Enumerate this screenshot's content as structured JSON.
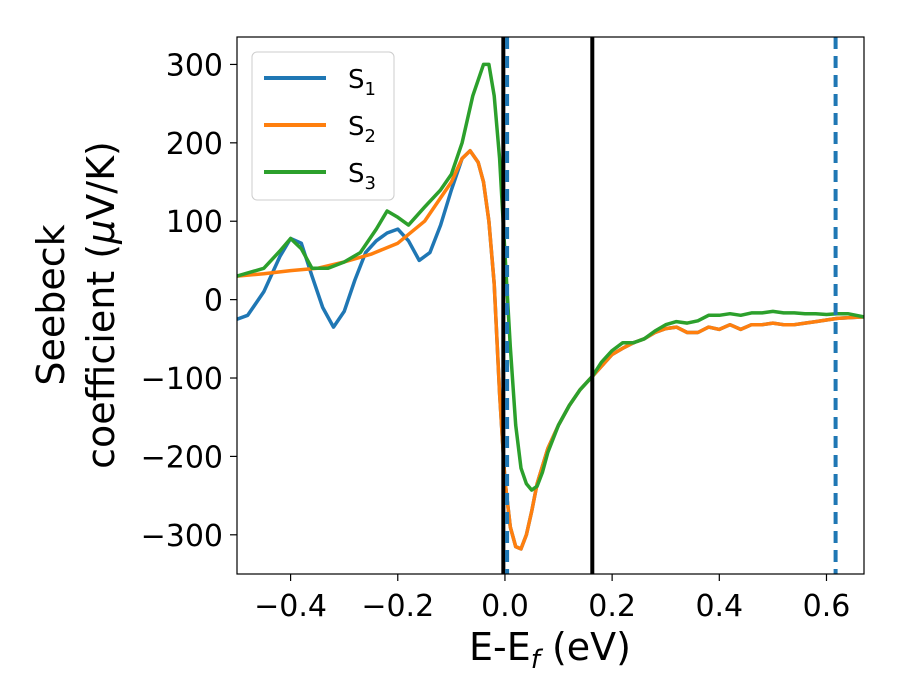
{
  "chart_data": {
    "type": "line",
    "xlabel": {
      "main": "E-E",
      "sub": "f",
      "unit": " (eV)"
    },
    "ylabel": {
      "line1": "Seebeck",
      "line2": "coefficient  (",
      "mu": "μ",
      "unit": "V/K)"
    },
    "xlim": [
      -0.5,
      0.67
    ],
    "ylim": [
      -350,
      335
    ],
    "xticks": [
      -0.4,
      -0.2,
      0.0,
      0.2,
      0.4,
      0.6
    ],
    "xtick_labels": [
      "−0.4",
      "−0.2",
      "0.0",
      "0.2",
      "0.4",
      "0.6"
    ],
    "yticks": [
      300,
      200,
      100,
      0,
      -100,
      -200,
      -300
    ],
    "ytick_labels": [
      "300",
      "200",
      "100",
      "0",
      "−100",
      "−200",
      "−300"
    ],
    "grid": false,
    "legend_position": "top-left",
    "vertical_lines": [
      {
        "x": -0.003,
        "style": "solid",
        "color": "#000000"
      },
      {
        "x": 0.163,
        "style": "solid",
        "color": "#000000"
      },
      {
        "x": 0.004,
        "style": "dashed",
        "color": "#1f77b4"
      },
      {
        "x": 0.617,
        "style": "dashed",
        "color": "#1f77b4"
      }
    ],
    "series": [
      {
        "name_main": "S",
        "name_sub": "1",
        "color": "#1f77b4",
        "x": [
          -0.5,
          -0.48,
          -0.45,
          -0.42,
          -0.4,
          -0.38,
          -0.36,
          -0.34,
          -0.32,
          -0.3,
          -0.28,
          -0.26,
          -0.24,
          -0.22,
          -0.2,
          -0.18,
          -0.16,
          -0.14,
          -0.12,
          -0.1,
          -0.08,
          -0.065,
          -0.05,
          -0.04,
          -0.03,
          -0.02,
          -0.01,
          0.0,
          0.01,
          0.02,
          0.03,
          0.04,
          0.05,
          0.06,
          0.08,
          0.1,
          0.12,
          0.14,
          0.163,
          0.18,
          0.2,
          0.22,
          0.24,
          0.26,
          0.28,
          0.3,
          0.32,
          0.34,
          0.36,
          0.38,
          0.4,
          0.42,
          0.44,
          0.46,
          0.48,
          0.5,
          0.52,
          0.54,
          0.56,
          0.58,
          0.6,
          0.62,
          0.64,
          0.67
        ],
        "y": [
          -25,
          -20,
          10,
          55,
          78,
          72,
          30,
          -10,
          -35,
          -15,
          25,
          60,
          75,
          85,
          90,
          75,
          50,
          60,
          95,
          140,
          180,
          190,
          175,
          150,
          100,
          20,
          -120,
          -230,
          -290,
          -315,
          -318,
          -300,
          -270,
          -235,
          -190,
          -160,
          -135,
          -115,
          -98,
          -85,
          -70,
          -62,
          -55,
          -50,
          -42,
          -37,
          -35,
          -42,
          -42,
          -35,
          -38,
          -32,
          -38,
          -32,
          -32,
          -30,
          -32,
          -32,
          -30,
          -28,
          -26,
          -24,
          -23,
          -22
        ]
      },
      {
        "name_main": "S",
        "name_sub": "2",
        "color": "#ff7f0e",
        "x": [
          -0.5,
          -0.45,
          -0.4,
          -0.35,
          -0.3,
          -0.25,
          -0.2,
          -0.15,
          -0.1,
          -0.08,
          -0.065,
          -0.05,
          -0.04,
          -0.03,
          -0.02,
          -0.01,
          0.0,
          0.01,
          0.02,
          0.03,
          0.04,
          0.05,
          0.06,
          0.08,
          0.1,
          0.12,
          0.14,
          0.163,
          0.18,
          0.2,
          0.22,
          0.24,
          0.26,
          0.28,
          0.3,
          0.32,
          0.34,
          0.36,
          0.38,
          0.4,
          0.42,
          0.44,
          0.46,
          0.48,
          0.5,
          0.52,
          0.54,
          0.56,
          0.58,
          0.6,
          0.62,
          0.64,
          0.67
        ],
        "y": [
          30,
          33,
          37,
          40,
          48,
          58,
          72,
          100,
          150,
          180,
          190,
          175,
          150,
          100,
          20,
          -120,
          -230,
          -290,
          -315,
          -318,
          -300,
          -270,
          -235,
          -190,
          -160,
          -135,
          -115,
          -98,
          -85,
          -70,
          -62,
          -55,
          -50,
          -42,
          -37,
          -35,
          -42,
          -42,
          -35,
          -38,
          -32,
          -38,
          -32,
          -32,
          -30,
          -32,
          -32,
          -30,
          -28,
          -26,
          -24,
          -23,
          -22
        ]
      },
      {
        "name_main": "S",
        "name_sub": "3",
        "color": "#2ca02c",
        "x": [
          -0.5,
          -0.45,
          -0.42,
          -0.4,
          -0.38,
          -0.36,
          -0.33,
          -0.3,
          -0.27,
          -0.24,
          -0.22,
          -0.2,
          -0.18,
          -0.15,
          -0.12,
          -0.1,
          -0.08,
          -0.06,
          -0.04,
          -0.03,
          -0.02,
          -0.01,
          0.0,
          0.01,
          0.02,
          0.03,
          0.04,
          0.05,
          0.06,
          0.07,
          0.08,
          0.1,
          0.12,
          0.14,
          0.163,
          0.18,
          0.2,
          0.22,
          0.24,
          0.26,
          0.28,
          0.3,
          0.32,
          0.34,
          0.36,
          0.38,
          0.4,
          0.42,
          0.44,
          0.46,
          0.48,
          0.5,
          0.52,
          0.54,
          0.56,
          0.58,
          0.6,
          0.62,
          0.64,
          0.67
        ],
        "y": [
          30,
          40,
          62,
          78,
          65,
          40,
          40,
          48,
          60,
          90,
          113,
          105,
          95,
          118,
          140,
          160,
          200,
          260,
          300,
          300,
          260,
          180,
          60,
          -60,
          -160,
          -215,
          -235,
          -243,
          -238,
          -220,
          -195,
          -160,
          -135,
          -115,
          -98,
          -80,
          -65,
          -55,
          -55,
          -50,
          -40,
          -32,
          -28,
          -30,
          -27,
          -20,
          -20,
          -18,
          -20,
          -17,
          -17,
          -15,
          -17,
          -17,
          -18,
          -18,
          -19,
          -18,
          -18,
          -22
        ]
      }
    ]
  }
}
